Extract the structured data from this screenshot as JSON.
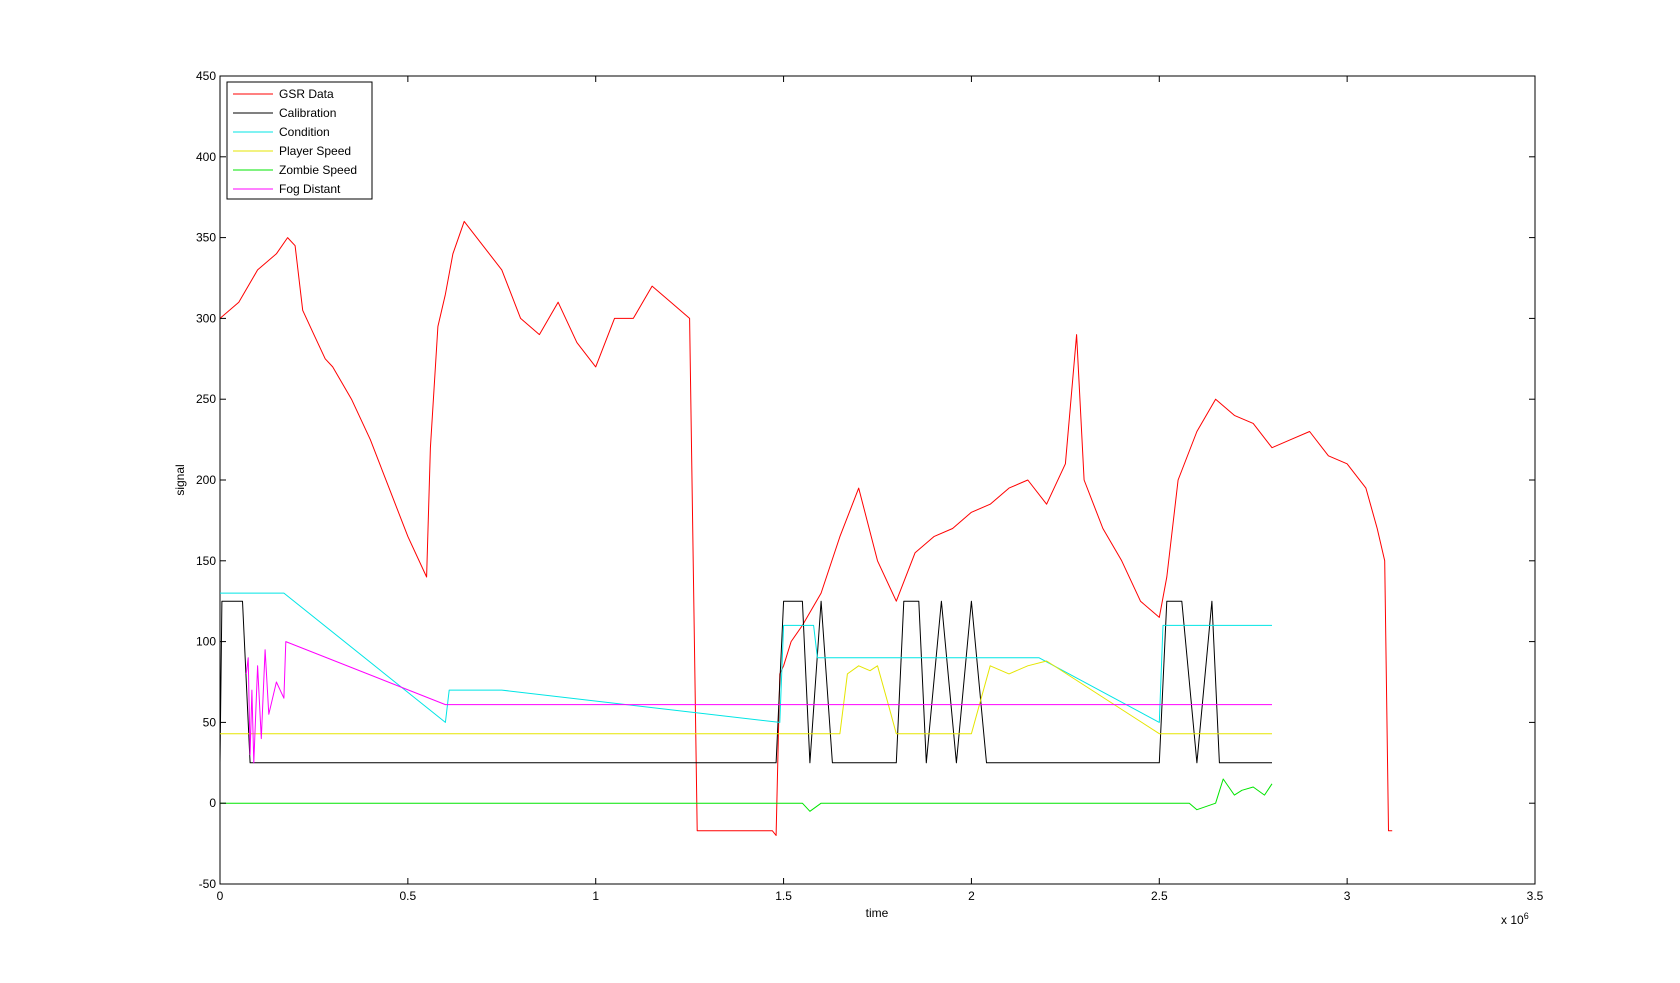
{
  "chart_data": {
    "type": "line",
    "title": "",
    "xlabel": "time",
    "ylabel": "signal",
    "x_exponent_label": "x 10",
    "x_exponent_power": "6",
    "xlim": [
      0,
      3.5
    ],
    "ylim": [
      -50,
      450
    ],
    "x_ticks": [
      "0",
      "0.5",
      "1",
      "1.5",
      "2",
      "2.5",
      "3",
      "3.5"
    ],
    "y_ticks": [
      "-50",
      "0",
      "50",
      "100",
      "150",
      "200",
      "250",
      "300",
      "350",
      "400",
      "450"
    ],
    "legend_position": "top-left",
    "grid": false,
    "series": [
      {
        "name": "GSR Data",
        "color": "#ff0000",
        "x": [
          0,
          0.05,
          0.1,
          0.15,
          0.18,
          0.2,
          0.22,
          0.25,
          0.28,
          0.3,
          0.35,
          0.4,
          0.45,
          0.5,
          0.55,
          0.56,
          0.58,
          0.6,
          0.62,
          0.65,
          0.7,
          0.75,
          0.8,
          0.85,
          0.9,
          0.95,
          1.0,
          1.05,
          1.1,
          1.15,
          1.2,
          1.25,
          1.27,
          1.28,
          1.4,
          1.47,
          1.48,
          1.49,
          1.5,
          1.52,
          1.55,
          1.6,
          1.65,
          1.7,
          1.75,
          1.8,
          1.85,
          1.9,
          1.95,
          2.0,
          2.05,
          2.1,
          2.15,
          2.2,
          2.25,
          2.28,
          2.3,
          2.35,
          2.4,
          2.45,
          2.5,
          2.52,
          2.55,
          2.6,
          2.65,
          2.7,
          2.75,
          2.8,
          2.85,
          2.9,
          2.95,
          3.0,
          3.05,
          3.08,
          3.1,
          3.11,
          3.12
        ],
        "y": [
          300,
          310,
          330,
          340,
          350,
          345,
          305,
          290,
          275,
          270,
          250,
          225,
          195,
          165,
          140,
          220,
          295,
          315,
          340,
          360,
          345,
          330,
          300,
          290,
          310,
          285,
          270,
          300,
          300,
          320,
          310,
          300,
          -17,
          -17,
          -17,
          -17,
          -20,
          80,
          85,
          100,
          110,
          130,
          165,
          195,
          150,
          125,
          155,
          165,
          170,
          180,
          185,
          195,
          200,
          185,
          210,
          290,
          200,
          170,
          150,
          125,
          115,
          140,
          200,
          230,
          250,
          240,
          235,
          220,
          225,
          230,
          215,
          210,
          195,
          170,
          150,
          -17,
          -17
        ]
      },
      {
        "name": "Calibration",
        "color": "#000000",
        "x": [
          0,
          0.005,
          0.06,
          0.08,
          1.48,
          1.5,
          1.55,
          1.57,
          1.6,
          1.63,
          1.8,
          1.82,
          1.86,
          1.88,
          1.92,
          1.96,
          2.0,
          2.04,
          2.5,
          2.52,
          2.56,
          2.6,
          2.64,
          2.66,
          2.8
        ],
        "y": [
          25,
          125,
          125,
          25,
          25,
          125,
          125,
          25,
          125,
          25,
          25,
          125,
          125,
          25,
          125,
          25,
          125,
          25,
          25,
          125,
          125,
          25,
          125,
          25,
          25
        ]
      },
      {
        "name": "Condition",
        "color": "#00e5e5",
        "x": [
          0,
          0.17,
          0.6,
          0.61,
          0.75,
          1.49,
          1.5,
          1.58,
          1.59,
          1.8,
          1.81,
          2.18,
          2.5,
          2.51,
          2.6,
          2.61,
          2.8
        ],
        "y": [
          130,
          130,
          50,
          70,
          70,
          50,
          110,
          110,
          90,
          90,
          90,
          90,
          50,
          110,
          110,
          110,
          110
        ]
      },
      {
        "name": "Player Speed",
        "color": "#e5e500",
        "x": [
          0,
          1.65,
          1.67,
          1.7,
          1.73,
          1.75,
          1.78,
          1.8,
          2.0,
          2.05,
          2.1,
          2.15,
          2.2,
          2.5,
          2.8
        ],
        "y": [
          43,
          43,
          80,
          85,
          82,
          85,
          60,
          43,
          43,
          85,
          80,
          85,
          88,
          43,
          43
        ]
      },
      {
        "name": "Zombie Speed",
        "color": "#00e500",
        "x": [
          0,
          1.55,
          1.57,
          1.6,
          2.58,
          2.6,
          2.65,
          2.67,
          2.7,
          2.72,
          2.75,
          2.78,
          2.8
        ],
        "y": [
          0,
          0,
          -5,
          0,
          0,
          -4,
          0,
          15,
          5,
          8,
          10,
          5,
          12
        ]
      },
      {
        "name": "Fog Distant",
        "color": "#ff00ff",
        "x": [
          0.07,
          0.075,
          0.08,
          0.085,
          0.09,
          0.1,
          0.11,
          0.12,
          0.13,
          0.15,
          0.17,
          0.175,
          0.6,
          2.8
        ],
        "y": [
          80,
          90,
          30,
          70,
          25,
          85,
          40,
          95,
          55,
          75,
          65,
          100,
          61,
          61
        ]
      }
    ]
  }
}
